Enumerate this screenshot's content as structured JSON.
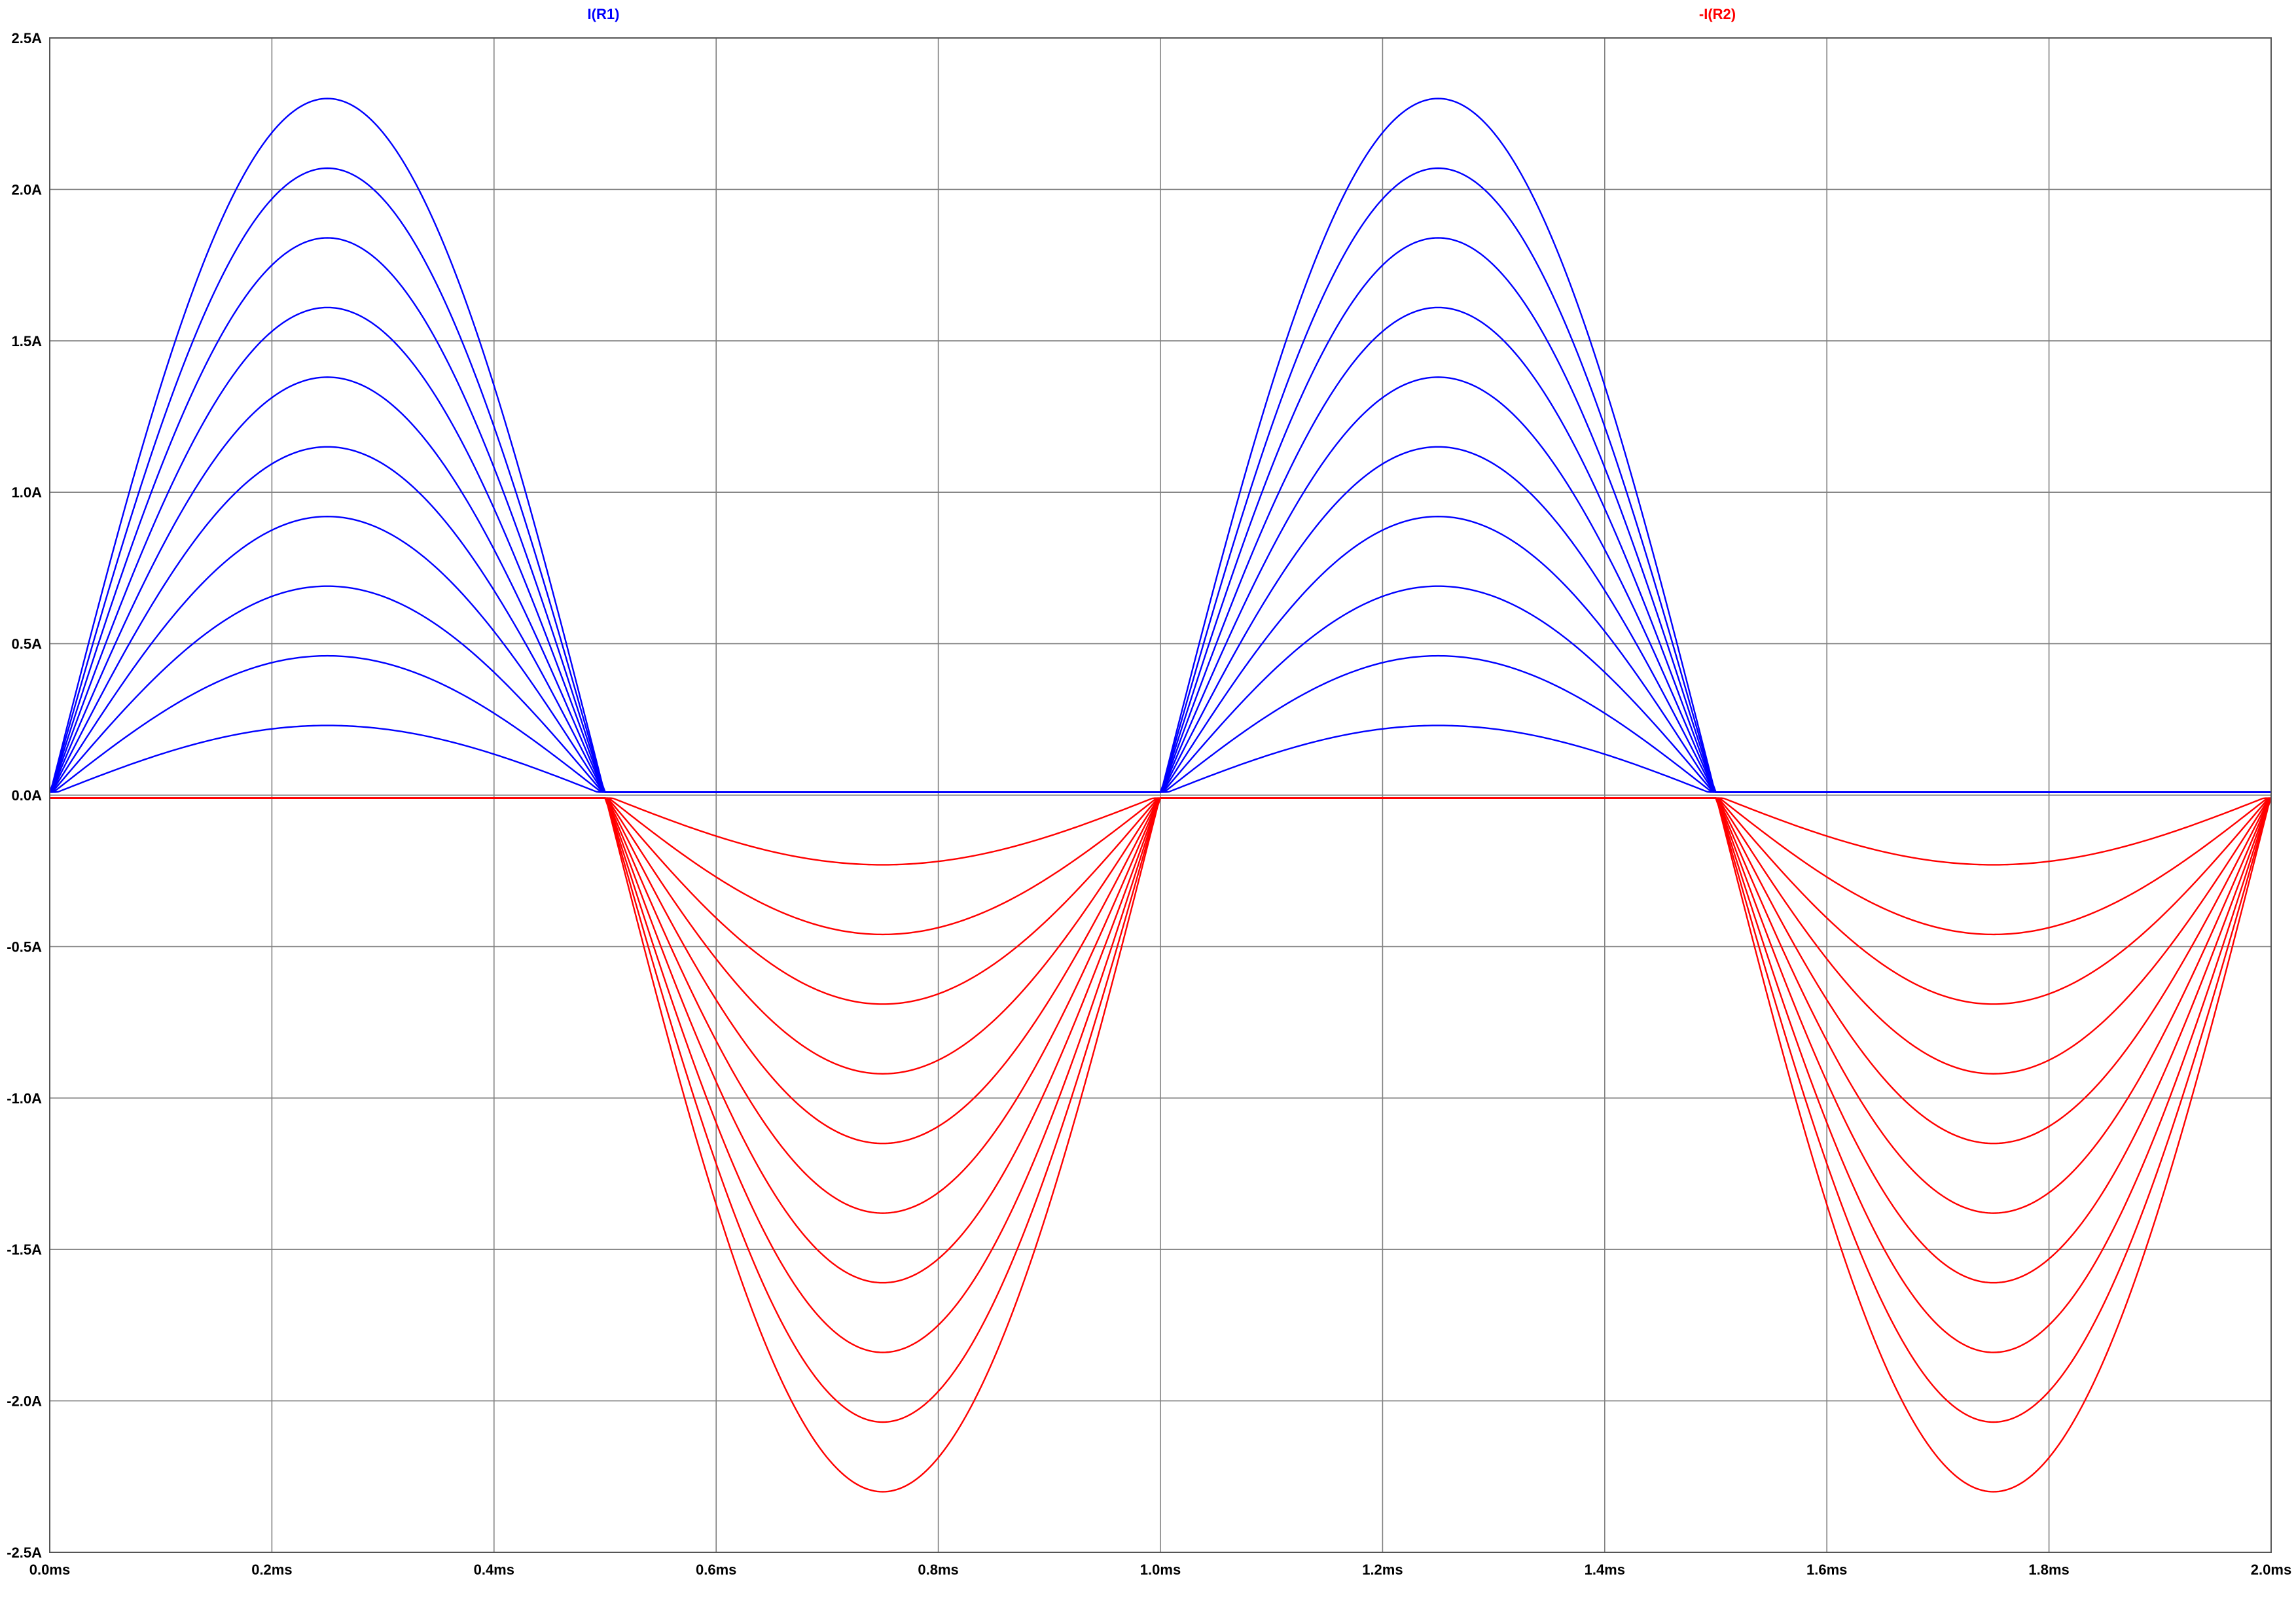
{
  "chart_data": {
    "type": "line",
    "title": "",
    "xlabel": "",
    "ylabel": "",
    "xlim": [
      0.0,
      2.0
    ],
    "ylim": [
      -2.5,
      2.5
    ],
    "grid": true,
    "x_ticks": [
      0.0,
      0.2,
      0.4,
      0.6,
      0.8,
      1.0,
      1.2,
      1.4,
      1.6,
      1.8,
      2.0
    ],
    "x_tick_labels": [
      "0.0ms",
      "0.2ms",
      "0.4ms",
      "0.6ms",
      "0.8ms",
      "1.0ms",
      "1.2ms",
      "1.4ms",
      "1.6ms",
      "1.8ms",
      "2.0ms"
    ],
    "y_ticks": [
      2.5,
      2.0,
      1.5,
      1.0,
      0.5,
      0.0,
      -0.5,
      -1.0,
      -1.5,
      -2.0,
      -2.5
    ],
    "y_tick_labels": [
      "2.5A",
      "2.0A",
      "1.5A",
      "1.0A",
      "0.5A",
      "0.0A",
      "-0.5A",
      "-1.0A",
      "-1.5A",
      "-2.0A",
      "-2.5A"
    ],
    "legend_placement": "top",
    "series": [
      {
        "name": "I(R1)",
        "color": "#0000ff",
        "shape": "half-wave sine, positive half-cycles",
        "frequency_khz": 1,
        "baseline_a": 0.01,
        "peaks_a": [
          0.23,
          0.46,
          0.69,
          0.92,
          1.15,
          1.38,
          1.61,
          1.84,
          2.07,
          2.3
        ]
      },
      {
        "name": "-I(R2)",
        "color": "#ff0000",
        "shape": "half-wave sine, negative half-cycles",
        "frequency_khz": 1,
        "baseline_a": -0.01,
        "peaks_a": [
          -0.23,
          -0.46,
          -0.69,
          -0.92,
          -1.15,
          -1.38,
          -1.61,
          -1.84,
          -2.07,
          -2.3
        ]
      }
    ]
  },
  "colors": {
    "grid": "#808080",
    "background": "#ffffff"
  }
}
